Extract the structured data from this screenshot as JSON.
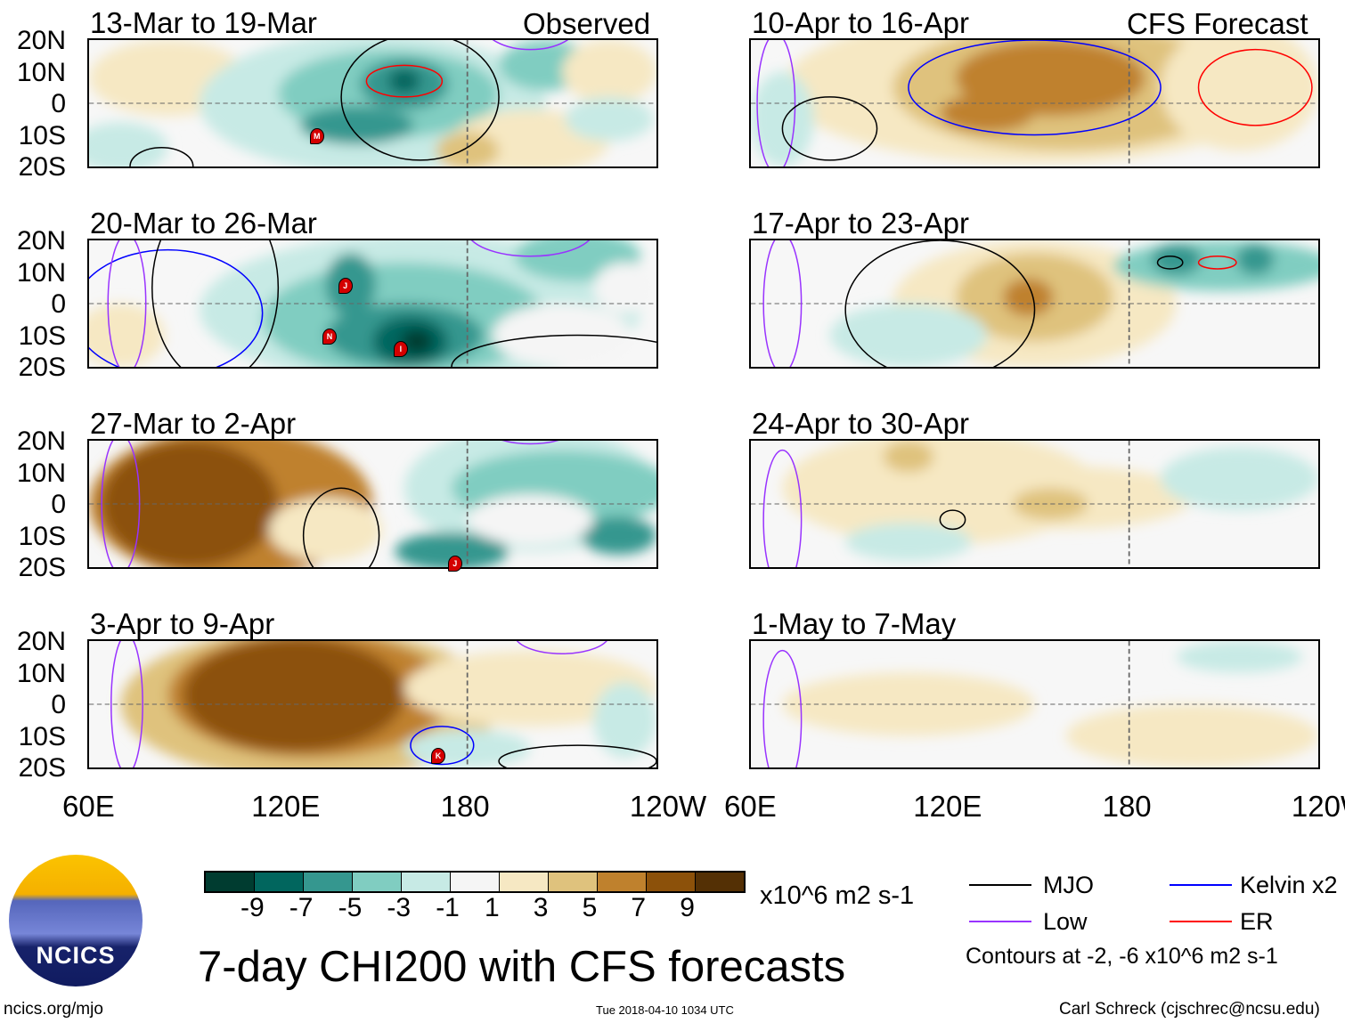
{
  "colorbar": {
    "colors": [
      "#003c30",
      "#01665e",
      "#35978f",
      "#80cdc1",
      "#c7eae5",
      "#f5f5f5",
      "#f6e8c3",
      "#dfc27d",
      "#bf812d",
      "#8c510a",
      "#543005"
    ],
    "labels": [
      "-9",
      "-7",
      "-5",
      "-3",
      "-1",
      "1",
      "3",
      "5",
      "7",
      "9"
    ],
    "units": "x10^6 m2 s-1"
  },
  "title": "7-day CHI200 with CFS forecasts",
  "legend": {
    "mjo": {
      "label": "MJO",
      "color": "#000000"
    },
    "kelvin": {
      "label": "Kelvin x2",
      "color": "#0000ff"
    },
    "low": {
      "label": "Low",
      "color": "#9933ff"
    },
    "er": {
      "label": "ER",
      "color": "#ff0000"
    },
    "contours_note": "Contours at -2, -6 x10^6 m2 s-1"
  },
  "footer": {
    "left": "ncics.org/mjo",
    "center": "Tue 2018-04-10 1034 UTC",
    "right": "Carl Schreck (cjschrec@ncsu.edu)"
  },
  "logo": {
    "text": "NCICS"
  },
  "lat_labels": [
    "20N",
    "10N",
    "0",
    "10S",
    "20S"
  ],
  "lon_labels": [
    "60E",
    "120E",
    "180",
    "120W"
  ],
  "column_labels": {
    "observed": "Observed",
    "forecast": "CFS Forecast"
  },
  "panels": [
    {
      "title": "13-Mar to 19-Mar",
      "blobs": [
        [
          85,
          8,
          25,
          12,
          6
        ],
        [
          70,
          -14,
          15,
          8,
          4
        ],
        [
          150,
          0,
          55,
          22,
          4
        ],
        [
          155,
          3,
          35,
          14,
          3
        ],
        [
          160,
          6,
          14,
          8,
          2
        ],
        [
          145,
          -7,
          18,
          6,
          2
        ],
        [
          160,
          7,
          5,
          4,
          1
        ],
        [
          200,
          -12,
          25,
          10,
          6
        ],
        [
          180,
          -15,
          10,
          6,
          7
        ],
        [
          205,
          12,
          15,
          8,
          3
        ],
        [
          225,
          10,
          15,
          10,
          6
        ],
        [
          225,
          -5,
          14,
          7,
          4
        ]
      ],
      "contours": [
        [
          160,
          7,
          12,
          5,
          "er"
        ],
        [
          165,
          2,
          25,
          20,
          "mjo"
        ],
        [
          83,
          -20,
          10,
          6,
          "mjo"
        ],
        [
          200,
          25,
          15,
          8,
          "low"
        ]
      ],
      "storms": [
        {
          "id": "M",
          "lon": 132,
          "lat": -10
        }
      ]
    },
    {
      "title": "20-Mar to 26-Mar",
      "blobs": [
        [
          70,
          -10,
          14,
          10,
          6
        ],
        [
          165,
          -2,
          70,
          24,
          4
        ],
        [
          160,
          -5,
          45,
          18,
          3
        ],
        [
          143,
          6,
          8,
          10,
          2
        ],
        [
          160,
          -10,
          25,
          10,
          2
        ],
        [
          162,
          -12,
          12,
          8,
          1
        ],
        [
          164,
          -12,
          5,
          4,
          0
        ],
        [
          210,
          -10,
          22,
          10,
          5
        ],
        [
          215,
          15,
          20,
          8,
          3
        ],
        [
          230,
          5,
          10,
          8,
          5
        ]
      ],
      "contours": [
        [
          85,
          -3,
          30,
          20,
          "kelvin"
        ],
        [
          200,
          23,
          20,
          8,
          "low"
        ],
        [
          72,
          0,
          6,
          22,
          "low"
        ],
        [
          215,
          -20,
          40,
          10,
          "mjo"
        ],
        [
          100,
          5,
          20,
          30,
          "mjo"
        ]
      ],
      "storms": [
        {
          "id": "J",
          "lon": 141,
          "lat": 6
        },
        {
          "id": "N",
          "lon": 136,
          "lat": -10
        },
        {
          "id": "I",
          "lon": 158.6,
          "lat": -14
        }
      ]
    },
    {
      "title": "27-Mar to 2-Apr",
      "blobs": [
        [
          105,
          0,
          45,
          24,
          8
        ],
        [
          92,
          0,
          28,
          20,
          9
        ],
        [
          135,
          -8,
          18,
          10,
          6
        ],
        [
          200,
          5,
          40,
          20,
          4
        ],
        [
          210,
          5,
          35,
          12,
          3
        ],
        [
          175,
          -15,
          18,
          6,
          2
        ],
        [
          228,
          -10,
          12,
          6,
          2
        ],
        [
          200,
          -5,
          20,
          8,
          5
        ]
      ],
      "contours": [
        [
          200,
          25,
          15,
          6,
          "low"
        ],
        [
          70,
          0,
          6,
          22,
          "low"
        ],
        [
          140,
          -10,
          12,
          15,
          "mjo"
        ]
      ],
      "storms": [
        {
          "id": "J",
          "lon": 175.8,
          "lat": -18.7
        }
      ]
    },
    {
      "title": "3-Apr to 9-Apr",
      "blobs": [
        [
          130,
          0,
          60,
          24,
          7
        ],
        [
          130,
          3,
          45,
          20,
          8
        ],
        [
          125,
          3,
          35,
          18,
          9
        ],
        [
          200,
          5,
          40,
          12,
          6
        ],
        [
          180,
          -14,
          20,
          6,
          4
        ],
        [
          230,
          -5,
          10,
          12,
          4
        ]
      ],
      "contours": [
        [
          172,
          -13,
          10,
          6,
          "kelvin"
        ],
        [
          72,
          0,
          5,
          22,
          "low"
        ],
        [
          210,
          22,
          15,
          6,
          "low"
        ],
        [
          215,
          -18,
          25,
          5,
          "mjo"
        ]
      ],
      "storms": [
        {
          "id": "K",
          "lon": 170.5,
          "lat": -16
        }
      ]
    },
    {
      "title": "10-Apr to 16-Apr",
      "blobs": [
        [
          150,
          5,
          80,
          24,
          6
        ],
        [
          160,
          5,
          55,
          20,
          7
        ],
        [
          155,
          8,
          30,
          12,
          8
        ],
        [
          135,
          -3,
          15,
          6,
          8
        ],
        [
          215,
          5,
          25,
          20,
          6
        ],
        [
          70,
          -5,
          10,
          15,
          4
        ]
      ],
      "contours": [
        [
          220,
          5,
          18,
          12,
          "er"
        ],
        [
          150,
          5,
          40,
          15,
          "kelvin"
        ],
        [
          68,
          0,
          6,
          22,
          "low"
        ],
        [
          85,
          -8,
          15,
          10,
          "mjo"
        ]
      ],
      "storms": []
    },
    {
      "title": "17-Apr to 23-Apr",
      "blobs": [
        [
          150,
          0,
          45,
          20,
          6
        ],
        [
          150,
          2,
          25,
          14,
          7
        ],
        [
          148,
          2,
          8,
          6,
          8
        ],
        [
          210,
          12,
          35,
          8,
          3
        ],
        [
          195,
          14,
          8,
          5,
          2
        ],
        [
          220,
          14,
          6,
          5,
          2
        ],
        [
          110,
          -10,
          25,
          10,
          4
        ]
      ],
      "contours": [
        [
          193,
          13,
          4,
          2,
          "mjo"
        ],
        [
          208,
          13,
          6,
          2,
          "er"
        ],
        [
          70,
          0,
          6,
          22,
          "low"
        ],
        [
          120,
          -2,
          30,
          22,
          "mjo"
        ]
      ],
      "storms": []
    },
    {
      "title": "24-Apr to 30-Apr",
      "blobs": [
        [
          120,
          5,
          50,
          18,
          6
        ],
        [
          160,
          2,
          40,
          10,
          6
        ],
        [
          155,
          0,
          12,
          5,
          7
        ],
        [
          110,
          15,
          8,
          5,
          7
        ],
        [
          215,
          8,
          25,
          10,
          4
        ],
        [
          110,
          -12,
          20,
          6,
          4
        ]
      ],
      "contours": [
        [
          70,
          -5,
          6,
          22,
          "low"
        ],
        [
          124,
          -5,
          4,
          3,
          "mjo"
        ]
      ],
      "storms": []
    },
    {
      "title": "1-May to 7-May",
      "blobs": [
        [
          200,
          -10,
          40,
          10,
          6
        ],
        [
          110,
          0,
          40,
          10,
          6
        ],
        [
          215,
          15,
          20,
          5,
          4
        ]
      ],
      "contours": [
        [
          70,
          -5,
          6,
          22,
          "low"
        ]
      ],
      "storms": []
    }
  ]
}
